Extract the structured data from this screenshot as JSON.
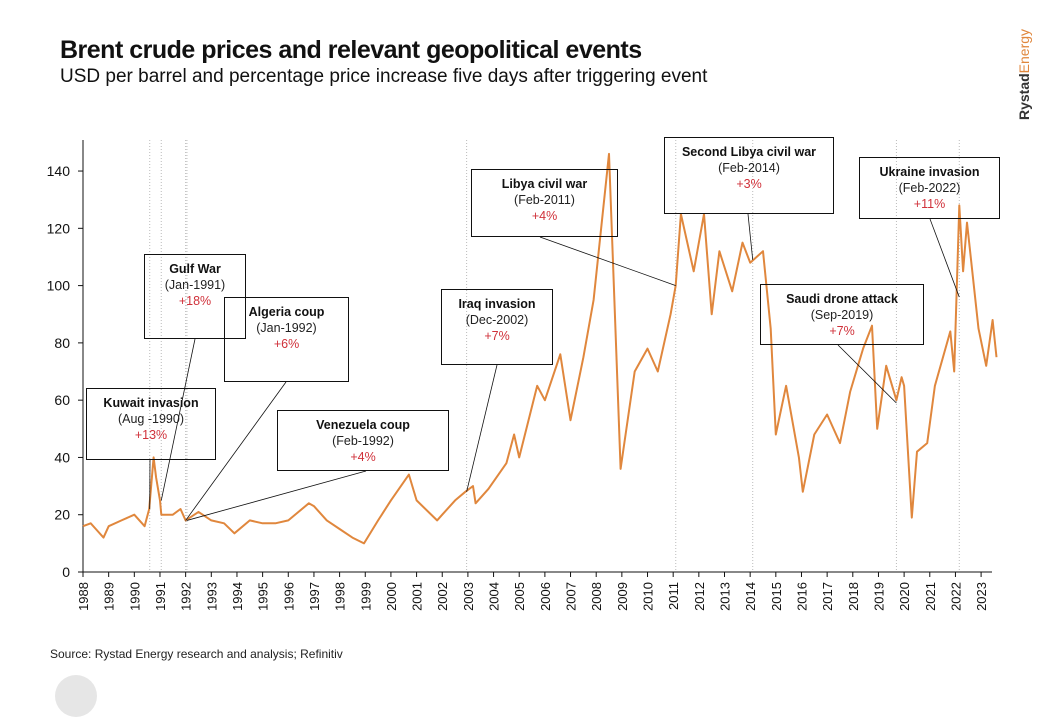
{
  "title": "Brent crude prices and relevant geopolitical events",
  "subtitle": "USD per barrel and percentage price increase five days after triggering event",
  "logo": {
    "part1": "Rystad",
    "part2": "Energy"
  },
  "source": "Source: Rystad Energy research and analysis; Refinitiv",
  "colors": {
    "line": "#e0873d",
    "pct": "#d0313a"
  },
  "chart_data": {
    "type": "line",
    "title": "Brent crude prices and relevant geopolitical events",
    "ylabel": "USD per barrel",
    "ylim": [
      0,
      150
    ],
    "yticks": [
      0,
      20,
      40,
      60,
      80,
      100,
      120,
      140
    ],
    "xlim": [
      1988,
      2023.6
    ],
    "xticks": [
      "1988",
      "1989",
      "1990",
      "1991",
      "1992",
      "1993",
      "1994",
      "1995",
      "1996",
      "1997",
      "1998",
      "1999",
      "2000",
      "2001",
      "2002",
      "2003",
      "2004",
      "2005",
      "2006",
      "2007",
      "2008",
      "2009",
      "2010",
      "2011",
      "2012",
      "2013",
      "2014",
      "2015",
      "2016",
      "2017",
      "2018",
      "2019",
      "2020",
      "2021",
      "2022",
      "2023"
    ],
    "grid": false,
    "series": [
      {
        "values": [
          [
            1988.0,
            16
          ],
          [
            1988.3,
            17
          ],
          [
            1988.5,
            15
          ],
          [
            1988.8,
            12
          ],
          [
            1989.0,
            16
          ],
          [
            1989.5,
            18
          ],
          [
            1990.0,
            20
          ],
          [
            1990.4,
            16
          ],
          [
            1990.58,
            22
          ],
          [
            1990.75,
            40
          ],
          [
            1990.85,
            33
          ],
          [
            1991.0,
            25
          ],
          [
            1991.05,
            20
          ],
          [
            1991.5,
            20
          ],
          [
            1991.8,
            22
          ],
          [
            1992.0,
            18
          ],
          [
            1992.5,
            21
          ],
          [
            1993.0,
            18
          ],
          [
            1993.5,
            17
          ],
          [
            1993.9,
            13.5
          ],
          [
            1994.5,
            18
          ],
          [
            1995.0,
            17
          ],
          [
            1995.5,
            17
          ],
          [
            1996.0,
            18
          ],
          [
            1996.8,
            24
          ],
          [
            1997.0,
            23
          ],
          [
            1997.5,
            18
          ],
          [
            1998.0,
            15
          ],
          [
            1998.5,
            12
          ],
          [
            1998.95,
            10
          ],
          [
            1999.5,
            18
          ],
          [
            2000.0,
            25
          ],
          [
            2000.7,
            34
          ],
          [
            2001.0,
            25
          ],
          [
            2001.8,
            18
          ],
          [
            2002.0,
            20
          ],
          [
            2002.5,
            25
          ],
          [
            2002.9,
            28
          ],
          [
            2003.2,
            30
          ],
          [
            2003.3,
            24
          ],
          [
            2003.8,
            29
          ],
          [
            2004.5,
            38
          ],
          [
            2004.8,
            48
          ],
          [
            2005.0,
            40
          ],
          [
            2005.7,
            65
          ],
          [
            2006.0,
            60
          ],
          [
            2006.6,
            76
          ],
          [
            2007.0,
            53
          ],
          [
            2007.5,
            75
          ],
          [
            2007.9,
            95
          ],
          [
            2008.5,
            146
          ],
          [
            2008.95,
            36
          ],
          [
            2009.5,
            70
          ],
          [
            2010.0,
            78
          ],
          [
            2010.4,
            70
          ],
          [
            2010.9,
            90
          ],
          [
            2011.1,
            100
          ],
          [
            2011.3,
            125
          ],
          [
            2011.8,
            105
          ],
          [
            2012.2,
            125
          ],
          [
            2012.5,
            90
          ],
          [
            2012.8,
            112
          ],
          [
            2013.3,
            98
          ],
          [
            2013.7,
            115
          ],
          [
            2014.0,
            108
          ],
          [
            2014.5,
            112
          ],
          [
            2014.8,
            85
          ],
          [
            2015.0,
            48
          ],
          [
            2015.4,
            65
          ],
          [
            2015.9,
            40
          ],
          [
            2016.05,
            28
          ],
          [
            2016.5,
            48
          ],
          [
            2017.0,
            55
          ],
          [
            2017.5,
            45
          ],
          [
            2017.9,
            63
          ],
          [
            2018.4,
            78
          ],
          [
            2018.75,
            86
          ],
          [
            2018.95,
            50
          ],
          [
            2019.3,
            72
          ],
          [
            2019.7,
            60
          ],
          [
            2019.9,
            68
          ],
          [
            2020.0,
            65
          ],
          [
            2020.3,
            19
          ],
          [
            2020.5,
            42
          ],
          [
            2020.9,
            45
          ],
          [
            2021.2,
            65
          ],
          [
            2021.8,
            84
          ],
          [
            2021.95,
            70
          ],
          [
            2022.15,
            128
          ],
          [
            2022.3,
            105
          ],
          [
            2022.45,
            122
          ],
          [
            2022.9,
            85
          ],
          [
            2023.2,
            72
          ],
          [
            2023.45,
            88
          ],
          [
            2023.6,
            75
          ]
        ]
      }
    ],
    "events": [
      {
        "name": "Kuwait invasion",
        "date": "(Aug -1990)",
        "pct": "+13%",
        "t": 1990.6,
        "price": 22
      },
      {
        "name": "Gulf War",
        "date": "(Jan-1991)",
        "pct": "+18%",
        "t": 1991.05,
        "price": 25
      },
      {
        "name": "Algeria coup",
        "date": "(Jan-1992)",
        "pct": "+6%",
        "t": 1992.0,
        "price": 18
      },
      {
        "name": "Venezuela coup",
        "date": "(Feb-1992)",
        "pct": "+4%",
        "t": 1992.05,
        "price": 18
      },
      {
        "name": "Iraq invasion",
        "date": "(Dec-2002)",
        "pct": "+7%",
        "t": 2002.95,
        "price": 28
      },
      {
        "name": "Libya civil war",
        "date": "(Feb-2011)",
        "pct": "+4%",
        "t": 2011.1,
        "price": 100
      },
      {
        "name": "Second Libya civil war",
        "date": "(Feb-2014)",
        "pct": "+3%",
        "t": 2014.1,
        "price": 109
      },
      {
        "name": "Saudi drone attack",
        "date": "(Sep-2019)",
        "pct": "+7%",
        "t": 2019.7,
        "price": 59
      },
      {
        "name": "Ukraine invasion",
        "date": "(Feb-2022)",
        "pct": "+11%",
        "t": 2022.15,
        "price": 96
      }
    ]
  }
}
